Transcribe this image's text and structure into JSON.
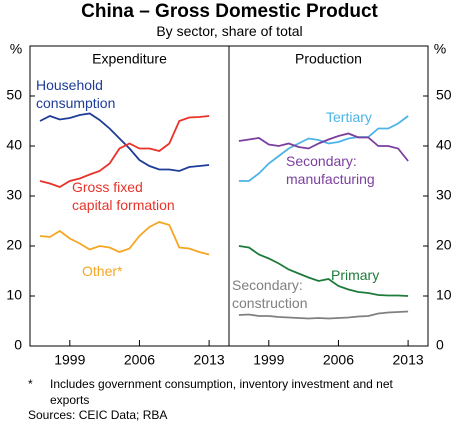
{
  "title": "China – Gross Domestic Product",
  "subtitle": "By sector, share of total",
  "footnote": {
    "marker": "*",
    "text": "Includes government consumption, inventory investment and net exports"
  },
  "sources": "Sources:  CEIC Data; RBA",
  "chart_data": [
    {
      "type": "line",
      "title": "Expenditure",
      "ylabel": "%",
      "axis_side": "left",
      "x": [
        1996,
        1997,
        1998,
        1999,
        2000,
        2001,
        2002,
        2003,
        2004,
        2005,
        2006,
        2007,
        2008,
        2009,
        2010,
        2011,
        2012,
        2013
      ],
      "xlim": [
        1995,
        2015
      ],
      "xticks": [
        1999,
        2006,
        2013
      ],
      "ylim": [
        0,
        60
      ],
      "yticks": [
        0,
        10,
        20,
        30,
        40,
        50
      ],
      "series": [
        {
          "name": "Household\nconsumption",
          "color": "#1f3c99",
          "values": [
            45,
            46,
            45.3,
            45.6,
            46.2,
            46.5,
            45.2,
            43.5,
            41.5,
            39.5,
            37.2,
            36,
            35.3,
            35.3,
            35,
            35.8,
            36,
            36.2
          ]
        },
        {
          "name": "Gross fixed\ncapital formation",
          "color": "#e8332a",
          "values": [
            33,
            32.5,
            31.8,
            33,
            33.5,
            34.3,
            35,
            36.5,
            39.5,
            40.5,
            39.5,
            39.5,
            39,
            40.5,
            45,
            45.7,
            45.8,
            46
          ]
        },
        {
          "name": "Other*",
          "color": "#f5a623",
          "values": [
            22,
            21.8,
            23,
            21.5,
            20.5,
            19.3,
            20,
            19.7,
            18.8,
            19.5,
            22,
            23.8,
            24.8,
            24.2,
            19.7,
            19.5,
            18.8,
            18.3
          ]
        }
      ]
    },
    {
      "type": "line",
      "title": "Production",
      "ylabel": "%",
      "axis_side": "right",
      "x": [
        1996,
        1997,
        1998,
        1999,
        2000,
        2001,
        2002,
        2003,
        2004,
        2005,
        2006,
        2007,
        2008,
        2009,
        2010,
        2011,
        2012,
        2013
      ],
      "xlim": [
        1995,
        2015
      ],
      "xticks": [
        1999,
        2006,
        2013
      ],
      "ylim": [
        0,
        60
      ],
      "yticks": [
        0,
        10,
        20,
        30,
        40,
        50
      ],
      "series": [
        {
          "name": "Tertiary",
          "color": "#4db3e6",
          "values": [
            33,
            33,
            34.5,
            36.5,
            38,
            39.5,
            40.5,
            41.5,
            41.2,
            40.5,
            40.8,
            41.5,
            41.8,
            41.8,
            43.5,
            43.5,
            44.5,
            46
          ]
        },
        {
          "name": "Secondary:\nmanufacturing",
          "color": "#7b3f9e",
          "values": [
            41,
            41.3,
            41.6,
            40.3,
            40,
            40.5,
            39.8,
            39.5,
            40.5,
            41.3,
            42,
            42.5,
            41.7,
            41.7,
            40,
            40,
            39.5,
            37
          ]
        },
        {
          "name": "Primary",
          "color": "#1e7b3c",
          "values": [
            20,
            19.7,
            18.3,
            17.5,
            16.5,
            15.3,
            14.5,
            13.7,
            13,
            13.4,
            12,
            11.3,
            10.8,
            10.6,
            10.2,
            10.1,
            10.1,
            10
          ]
        },
        {
          "name": "Secondary:\nconstruction",
          "color": "#808080",
          "values": [
            6.2,
            6.3,
            6,
            6,
            5.8,
            5.7,
            5.6,
            5.5,
            5.6,
            5.5,
            5.6,
            5.7,
            5.9,
            6,
            6.5,
            6.7,
            6.8,
            6.9
          ]
        }
      ]
    }
  ]
}
